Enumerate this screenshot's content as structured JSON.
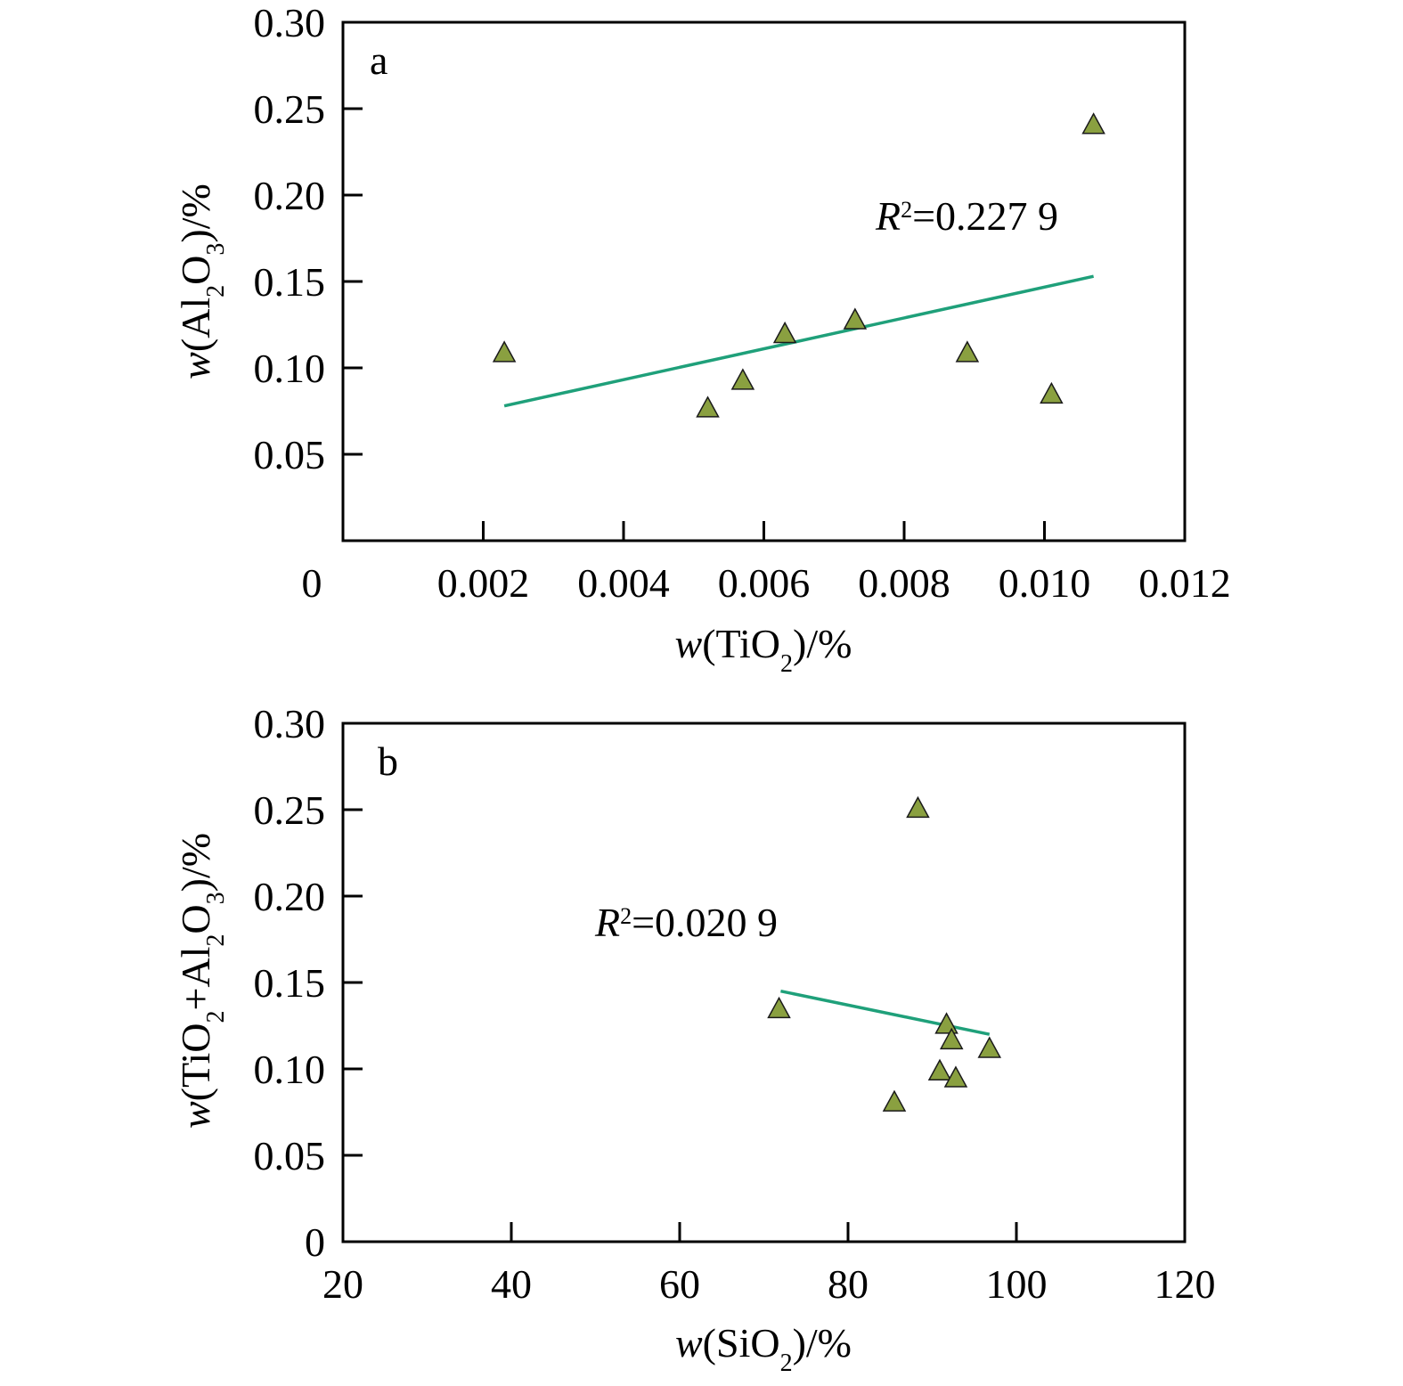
{
  "colors": {
    "marker_fill": "#8aa040",
    "marker_stroke": "#1a1a1a",
    "trend_line": "#1fa07a",
    "axis": "#000000"
  },
  "chart_data": [
    {
      "type": "scatter",
      "panel_tag": "a",
      "x_label": {
        "var": "w",
        "open": "(TiO",
        "sub": "2",
        "close": ")/%"
      },
      "y_label": {
        "var": "w",
        "open": "(Al",
        "sub1": "2",
        "mid": "O",
        "sub2": "3",
        "close": ")/%"
      },
      "xlim": [
        0,
        0.012
      ],
      "ylim": [
        0,
        0.3
      ],
      "x_ticks": [
        0,
        0.002,
        0.004,
        0.006,
        0.008,
        0.01,
        0.012
      ],
      "x_tick_labels": [
        "0",
        "0.002",
        "0.004",
        "0.006",
        "0.008",
        "0.010",
        "0.012"
      ],
      "y_ticks": [
        0.05,
        0.1,
        0.15,
        0.2,
        0.25,
        0.3
      ],
      "y_tick_labels": [
        "0.05",
        "0.10",
        "0.15",
        "0.20",
        "0.25",
        "0.30"
      ],
      "points": [
        {
          "x": 0.0023,
          "y": 0.108
        },
        {
          "x": 0.0052,
          "y": 0.076
        },
        {
          "x": 0.0057,
          "y": 0.092
        },
        {
          "x": 0.0063,
          "y": 0.119
        },
        {
          "x": 0.0073,
          "y": 0.127
        },
        {
          "x": 0.0089,
          "y": 0.108
        },
        {
          "x": 0.0101,
          "y": 0.084
        },
        {
          "x": 0.0107,
          "y": 0.24
        }
      ],
      "trendline": {
        "x": [
          0.0023,
          0.0107
        ],
        "y": [
          0.078,
          0.153
        ]
      },
      "r2": {
        "var": "R",
        "sup": "2",
        "value": "=0.227 9"
      }
    },
    {
      "type": "scatter",
      "panel_tag": "b",
      "x_label": {
        "var": "w",
        "open": "(SiO",
        "sub": "2",
        "close": ")/%"
      },
      "y_label": {
        "var": "w",
        "open": "(TiO",
        "sub1": "2",
        "mid": "+Al",
        "sub2": "2",
        "mid2": "O",
        "sub3": "3",
        "close": ")/%"
      },
      "xlim": [
        20,
        120
      ],
      "ylim": [
        0,
        0.3
      ],
      "x_ticks": [
        20,
        40,
        60,
        80,
        100,
        120
      ],
      "x_tick_labels": [
        "20",
        "40",
        "60",
        "80",
        "100",
        "120"
      ],
      "y_ticks": [
        0,
        0.05,
        0.1,
        0.15,
        0.2,
        0.25,
        0.3
      ],
      "y_tick_labels": [
        "0",
        "0.05",
        "0.10",
        "0.15",
        "0.20",
        "0.25",
        "0.30"
      ],
      "points": [
        {
          "x": 71.8,
          "y": 0.134
        },
        {
          "x": 85.5,
          "y": 0.08
        },
        {
          "x": 88.3,
          "y": 0.25
        },
        {
          "x": 90.9,
          "y": 0.098
        },
        {
          "x": 91.7,
          "y": 0.125
        },
        {
          "x": 92.3,
          "y": 0.116
        },
        {
          "x": 92.8,
          "y": 0.094
        },
        {
          "x": 96.8,
          "y": 0.111
        }
      ],
      "trendline": {
        "x": [
          72.0,
          96.8
        ],
        "y": [
          0.145,
          0.12
        ]
      },
      "r2": {
        "var": "R",
        "sup": "2",
        "value": "=0.020 9"
      }
    }
  ]
}
